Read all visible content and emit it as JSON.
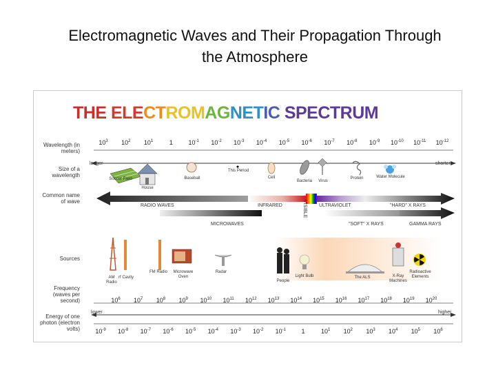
{
  "slide": {
    "title_line1": "Electromagnetic Waves and Their Propagation Through",
    "title_line2": "the Atmosphere"
  },
  "banner": {
    "words": [
      {
        "text": "THE",
        "color": "#c9302c"
      },
      {
        "text": "ELECTROMAGNETIC",
        "color": "gradient"
      },
      {
        "text": "SPECTRUM",
        "color": "#5b3a9b"
      }
    ],
    "gradient_colors": [
      "#d33a2a",
      "#ef8a1f",
      "#e9c326",
      "#6cb33f",
      "#2f8fc9",
      "#4a5fb3"
    ]
  },
  "row_labels": {
    "wavelength": "Wavelength (in meters)",
    "size": "Size of a wavelength",
    "common_name": "Common name of wave",
    "sources": "Sources",
    "frequency": "Frequency (waves per second)",
    "energy": "Energy of one photon (electron volts)"
  },
  "wavelength_ticks": [
    {
      "base": "10",
      "exp": "3"
    },
    {
      "base": "10",
      "exp": "2"
    },
    {
      "base": "10",
      "exp": "1"
    },
    {
      "base": "1",
      "exp": ""
    },
    {
      "base": "10",
      "exp": "-1"
    },
    {
      "base": "10",
      "exp": "-2"
    },
    {
      "base": "10",
      "exp": "-3"
    },
    {
      "base": "10",
      "exp": "-4"
    },
    {
      "base": "10",
      "exp": "-5"
    },
    {
      "base": "10",
      "exp": "-6"
    },
    {
      "base": "10",
      "exp": "-7"
    },
    {
      "base": "10",
      "exp": "-8"
    },
    {
      "base": "10",
      "exp": "-9"
    },
    {
      "base": "10",
      "exp": "-10"
    },
    {
      "base": "10",
      "exp": "-11"
    },
    {
      "base": "10",
      "exp": "-12"
    }
  ],
  "wavelength_direction": {
    "left": "longer",
    "right": "shorter"
  },
  "size_objects": [
    "Soccer Field",
    "House",
    "Baseball",
    "This Period",
    "Cell",
    "Bacteria",
    "Virus",
    "Protein",
    "Water Molecule"
  ],
  "wave_names": {
    "radio": "RADIO WAVES",
    "microwaves": "MICROWAVES",
    "infrared": "INFRARED",
    "visible": "VISIBLE",
    "ultraviolet": "ULTRAVIOLET",
    "hard_x": "\"HARD\" X RAYS",
    "soft_x": "\"SOFT\" X RAYS",
    "gamma": "GAMMA RAYS"
  },
  "sources": [
    "AM Radio",
    "rf Cavity",
    "FM Radio",
    "Microwave Oven",
    "Radar",
    "People",
    "Light Bulb",
    "The ALS",
    "X-Ray Machines",
    "Radioactive Elements"
  ],
  "frequency_ticks": [
    "6",
    "7",
    "8",
    "9",
    "10",
    "11",
    "12",
    "13",
    "14",
    "15",
    "16",
    "17",
    "18",
    "19",
    "20"
  ],
  "energy_direction": {
    "left": "lower",
    "right": "higher"
  },
  "energy_ticks": [
    {
      "base": "10",
      "exp": "-9"
    },
    {
      "base": "10",
      "exp": "-8"
    },
    {
      "base": "10",
      "exp": "-7"
    },
    {
      "base": "10",
      "exp": "-6"
    },
    {
      "base": "10",
      "exp": "-5"
    },
    {
      "base": "10",
      "exp": "-4"
    },
    {
      "base": "10",
      "exp": "-3"
    },
    {
      "base": "10",
      "exp": "-2"
    },
    {
      "base": "10",
      "exp": "-1"
    },
    {
      "base": "1",
      "exp": ""
    },
    {
      "base": "10",
      "exp": "1"
    },
    {
      "base": "10",
      "exp": "2"
    },
    {
      "base": "10",
      "exp": "3"
    },
    {
      "base": "10",
      "exp": "4"
    },
    {
      "base": "10",
      "exp": "5"
    },
    {
      "base": "10",
      "exp": "6"
    }
  ]
}
